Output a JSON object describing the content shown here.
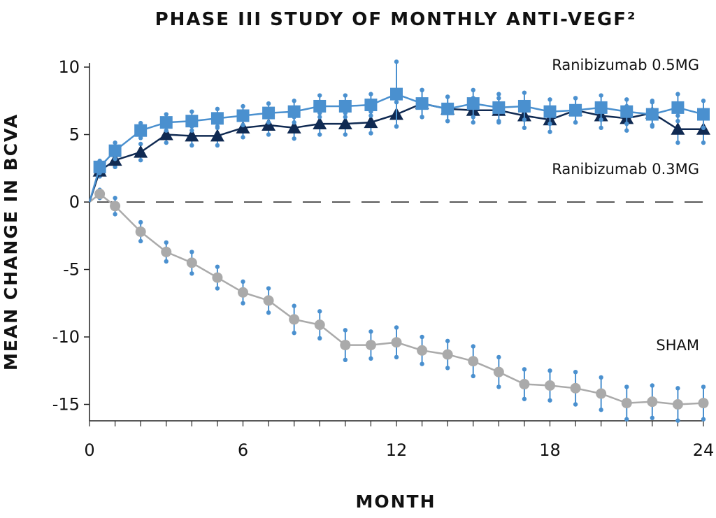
{
  "chart_data": {
    "type": "line",
    "title": "PHASE III STUDY OF MONTHLY ANTI-VEGF²",
    "xlabel": "MONTH",
    "ylabel": "MEAN CHANGE IN BCVA",
    "xlim": [
      0,
      24
    ],
    "ylim": [
      -16,
      10
    ],
    "xticks": [
      "0",
      "6",
      "12",
      "18",
      "24"
    ],
    "yticks": [
      "10",
      "5",
      "0",
      "-5",
      "-10",
      "-15"
    ],
    "grid": false,
    "reference_line": {
      "y": 0,
      "style": "dashed"
    },
    "series": [
      {
        "name": "Ranibizumab 0.5MG",
        "marker": "square",
        "color": "#4a90cf",
        "x": [
          0,
          0.4,
          1,
          2,
          3,
          4,
          5,
          6,
          7,
          8,
          9,
          10,
          11,
          12,
          13,
          14,
          15,
          16,
          17,
          18,
          19,
          20,
          21,
          22,
          23,
          24
        ],
        "y": [
          0,
          2.6,
          3.8,
          5.3,
          5.9,
          6.0,
          6.2,
          6.4,
          6.6,
          6.7,
          7.1,
          7.1,
          7.2,
          8.0,
          7.3,
          6.9,
          7.3,
          7.0,
          7.1,
          6.7,
          6.8,
          7.0,
          6.7,
          6.5,
          7.0,
          6.5
        ],
        "error": [
          0,
          0.45,
          0.6,
          0.55,
          0.6,
          0.7,
          0.7,
          0.7,
          0.7,
          0.8,
          0.8,
          0.8,
          0.8,
          2.4,
          1.0,
          0.9,
          1.0,
          1.0,
          1.0,
          0.9,
          0.9,
          0.9,
          0.9,
          0.9,
          1.0,
          1.0
        ]
      },
      {
        "name": "Ranibizumab 0.3MG",
        "marker": "triangle",
        "color": "#102a52",
        "x": [
          0,
          0.4,
          1,
          2,
          3,
          4,
          5,
          6,
          7,
          8,
          9,
          10,
          11,
          12,
          13,
          14,
          15,
          16,
          17,
          18,
          19,
          20,
          21,
          22,
          23,
          24
        ],
        "y": [
          0,
          2.3,
          3.1,
          3.7,
          5.0,
          4.9,
          4.9,
          5.5,
          5.7,
          5.5,
          5.8,
          5.8,
          5.9,
          6.5,
          7.3,
          6.9,
          6.8,
          6.8,
          6.4,
          6.1,
          6.8,
          6.4,
          6.2,
          6.6,
          5.4,
          5.4
        ],
        "error": [
          0,
          0.4,
          0.5,
          0.6,
          0.6,
          0.7,
          0.7,
          0.7,
          0.7,
          0.8,
          0.8,
          0.8,
          0.8,
          0.9,
          1.0,
          0.9,
          0.9,
          0.9,
          0.9,
          0.9,
          0.9,
          0.9,
          0.9,
          0.9,
          1.0,
          1.0
        ]
      },
      {
        "name": "SHAM",
        "marker": "circle",
        "color": "#aaaaaa",
        "x": [
          0,
          0.4,
          1,
          2,
          3,
          4,
          5,
          6,
          7,
          8,
          9,
          10,
          11,
          12,
          13,
          14,
          15,
          16,
          17,
          18,
          19,
          20,
          21,
          22,
          23,
          24
        ],
        "y": [
          0,
          0.6,
          -0.3,
          -2.2,
          -3.7,
          -4.5,
          -5.6,
          -6.7,
          -7.3,
          -8.7,
          -9.1,
          -10.6,
          -10.6,
          -10.4,
          -11.0,
          -11.3,
          -11.8,
          -12.6,
          -13.5,
          -13.6,
          -13.8,
          -14.2,
          -14.9,
          -14.8,
          -15.0,
          -14.9
        ],
        "error": [
          0,
          0.3,
          0.6,
          0.7,
          0.7,
          0.8,
          0.8,
          0.8,
          0.9,
          1.0,
          1.0,
          1.1,
          1.0,
          1.1,
          1.0,
          1.0,
          1.1,
          1.1,
          1.1,
          1.1,
          1.2,
          1.2,
          1.2,
          1.2,
          1.2,
          1.2
        ]
      }
    ]
  }
}
